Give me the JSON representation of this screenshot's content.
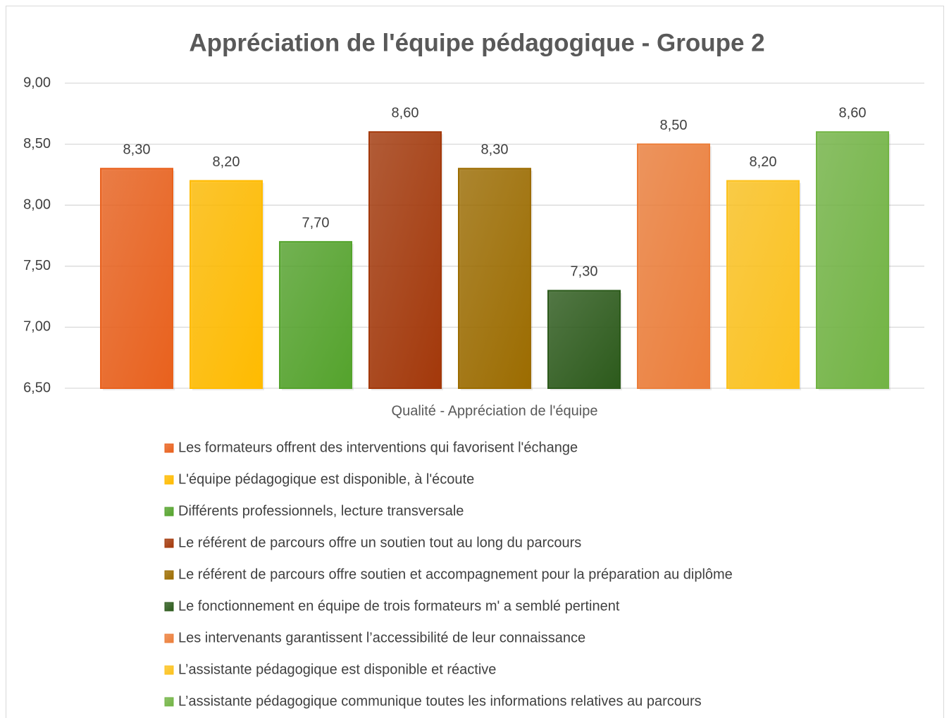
{
  "chart_data": {
    "type": "bar",
    "title": "Appréciation de l'équipe pédagogique - Groupe 2",
    "categories": [
      "Qualité - Appréciation de l'équipe"
    ],
    "series": [
      {
        "name": "Les formateurs offrent des interventions qui favorisent l'échange",
        "color": "#e9611d",
        "values": [
          8.3
        ],
        "value_labels": [
          "8,30"
        ]
      },
      {
        "name": "L'équipe pédagogique est disponible, à l'écoute",
        "color": "#ffbb00",
        "values": [
          8.2
        ],
        "value_labels": [
          "8,20"
        ]
      },
      {
        "name": "Différents professionnels, lecture transversale",
        "color": "#54a32c",
        "values": [
          7.7
        ],
        "value_labels": [
          "7,70"
        ]
      },
      {
        "name": "Le référent de parcours offre un soutien tout au long du parcours",
        "color": "#a3380a",
        "values": [
          8.6
        ],
        "value_labels": [
          "8,60"
        ]
      },
      {
        "name": "Le référent de parcours offre soutien et accompagnement pour la préparation au diplôme",
        "color": "#9c6c00",
        "values": [
          8.3
        ],
        "value_labels": [
          "8,30"
        ]
      },
      {
        "name": "Le fonctionnement en équipe de trois formateurs m' a semblé pertinent",
        "color": "#2c5a1b",
        "values": [
          7.3
        ],
        "value_labels": [
          "7,30"
        ]
      },
      {
        "name": "Les intervenants garantissent l’accessibilité de leur connaissance",
        "color": "#ec7e3a",
        "values": [
          8.5
        ],
        "value_labels": [
          "8,50"
        ]
      },
      {
        "name": "L’assistante pédagogique est disponible et réactive",
        "color": "#fcc21e",
        "values": [
          8.2
        ],
        "value_labels": [
          "8,20"
        ]
      },
      {
        "name": "L’assistante pédagogique communique toutes les informations relatives au parcours",
        "color": "#72b444",
        "values": [
          8.6
        ],
        "value_labels": [
          "8,60"
        ]
      }
    ],
    "ylim": [
      6.5,
      9
    ],
    "yticks": [
      {
        "value": 6.5,
        "label": "6,50"
      },
      {
        "value": 7,
        "label": "7,00"
      },
      {
        "value": 7.5,
        "label": "7,50"
      },
      {
        "value": 8,
        "label": "8,00"
      },
      {
        "value": 8.5,
        "label": "8,50"
      },
      {
        "value": 9,
        "label": "9,00"
      }
    ],
    "grid": true
  }
}
